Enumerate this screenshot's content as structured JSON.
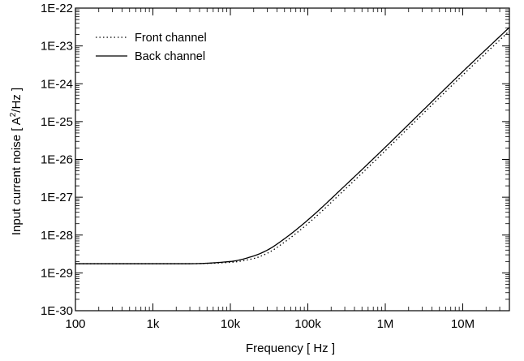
{
  "chart_data": {
    "type": "line",
    "title": "",
    "xlabel": "Frequency [ Hz ]",
    "ylabel_prefix": "Input current noise  [ A",
    "ylabel_sup": "2",
    "ylabel_suffix": "/Hz ]",
    "xscale": "log",
    "yscale": "log",
    "xlim": [
      100,
      40000000
    ],
    "ylim": [
      1e-30,
      1e-22
    ],
    "xticks": [
      100,
      1000,
      10000,
      100000,
      1000000,
      10000000
    ],
    "xticklabels": [
      "100",
      "1k",
      "10k",
      "100k",
      "1M",
      "10M"
    ],
    "yticks": [
      1e-30,
      1e-29,
      1e-28,
      1e-27,
      1e-26,
      1e-25,
      1e-24,
      1e-23,
      1e-22
    ],
    "yticklabels": [
      "1E-30",
      "1E-29",
      "1E-28",
      "1E-27",
      "1E-26",
      "1E-25",
      "1E-24",
      "1E-23",
      "1E-22"
    ],
    "grid": false,
    "legend_position": "top-left",
    "series": [
      {
        "name": "Front channel",
        "line_style": "dotted",
        "color": "#000000",
        "x": [
          100,
          1000,
          3000,
          10000,
          20000,
          30000,
          50000,
          100000,
          300000,
          1000000,
          3000000,
          10000000,
          40000000
        ],
        "y": [
          1.75e-29,
          1.75e-29,
          1.75e-29,
          1.9e-29,
          2.4e-29,
          3.3e-29,
          6.5e-29,
          2e-28,
          1.6e-27,
          1.7e-26,
          1.55e-25,
          1.7e-24,
          2.5e-23
        ]
      },
      {
        "name": "Back channel",
        "line_style": "solid",
        "color": "#000000",
        "x": [
          100,
          1000,
          3000,
          10000,
          20000,
          30000,
          50000,
          100000,
          300000,
          1000000,
          3000000,
          10000000,
          40000000
        ],
        "y": [
          1.75e-29,
          1.75e-29,
          1.75e-29,
          2e-29,
          2.8e-29,
          4e-29,
          8e-29,
          2.5e-28,
          2e-27,
          2.1e-26,
          1.9e-25,
          2.1e-24,
          3.1e-23
        ]
      }
    ]
  }
}
